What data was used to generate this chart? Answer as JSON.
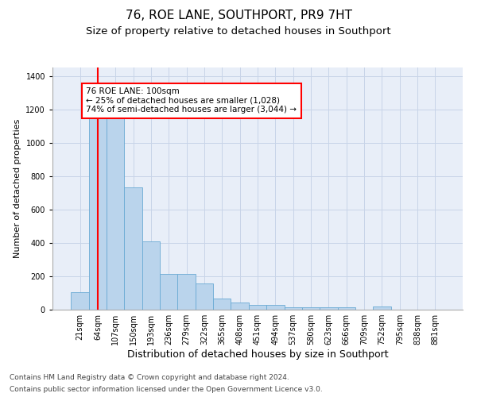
{
  "title1": "76, ROE LANE, SOUTHPORT, PR9 7HT",
  "title2": "Size of property relative to detached houses in Southport",
  "xlabel": "Distribution of detached houses by size in Southport",
  "ylabel": "Number of detached properties",
  "categories": [
    "21sqm",
    "64sqm",
    "107sqm",
    "150sqm",
    "193sqm",
    "236sqm",
    "279sqm",
    "322sqm",
    "365sqm",
    "408sqm",
    "451sqm",
    "494sqm",
    "537sqm",
    "580sqm",
    "623sqm",
    "666sqm",
    "709sqm",
    "752sqm",
    "795sqm",
    "838sqm",
    "881sqm"
  ],
  "values": [
    105,
    1150,
    1150,
    730,
    410,
    215,
    215,
    155,
    65,
    45,
    28,
    28,
    16,
    15,
    15,
    15,
    0,
    18,
    0,
    0,
    0
  ],
  "bar_color": "#bad4ec",
  "bar_edge_color": "#6aaad4",
  "grid_color": "#c8d4e8",
  "bg_color": "#e8eef8",
  "annotation_text": "76 ROE LANE: 100sqm\n← 25% of detached houses are smaller (1,028)\n74% of semi-detached houses are larger (3,044) →",
  "annotation_box_color": "white",
  "annotation_box_edge": "red",
  "vline_color": "red",
  "vline_x": 1.0,
  "ylim": [
    0,
    1450
  ],
  "yticks": [
    0,
    200,
    400,
    600,
    800,
    1000,
    1200,
    1400
  ],
  "footer1": "Contains HM Land Registry data © Crown copyright and database right 2024.",
  "footer2": "Contains public sector information licensed under the Open Government Licence v3.0.",
  "title1_fontsize": 11,
  "title2_fontsize": 9.5,
  "xlabel_fontsize": 9,
  "ylabel_fontsize": 8,
  "tick_fontsize": 7,
  "annot_fontsize": 7.5,
  "footer_fontsize": 6.5
}
